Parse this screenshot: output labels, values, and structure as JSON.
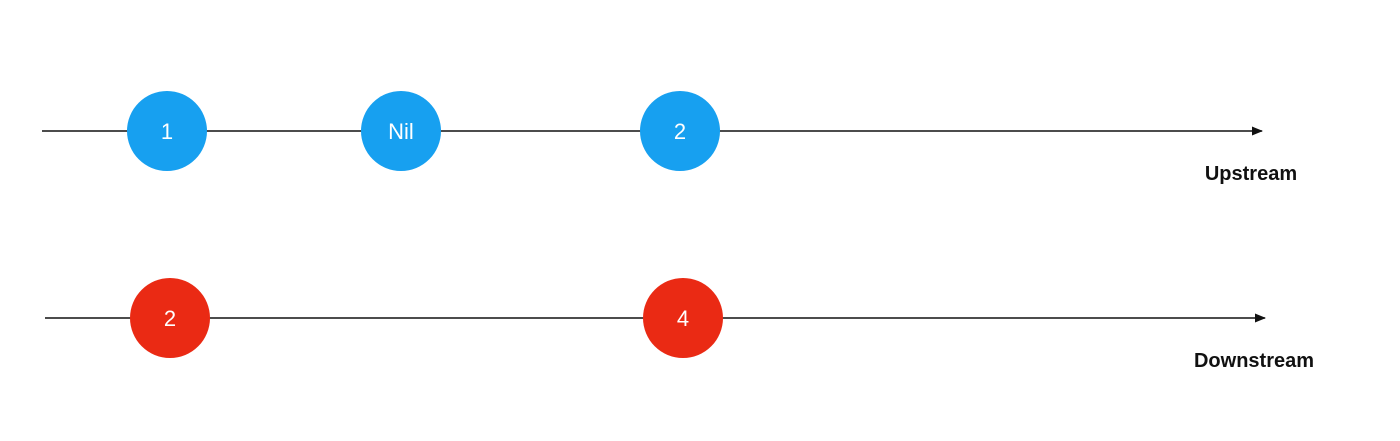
{
  "upstream": {
    "name": "Upstream",
    "color": "#17a0f0",
    "marbles": [
      {
        "label": "1"
      },
      {
        "label": "Nil"
      },
      {
        "label": "2"
      }
    ]
  },
  "downstream": {
    "name": "Downstream",
    "color": "#ea2a14",
    "marbles": [
      {
        "label": "2"
      },
      {
        "label": "4"
      }
    ]
  },
  "line_color": "#111111"
}
